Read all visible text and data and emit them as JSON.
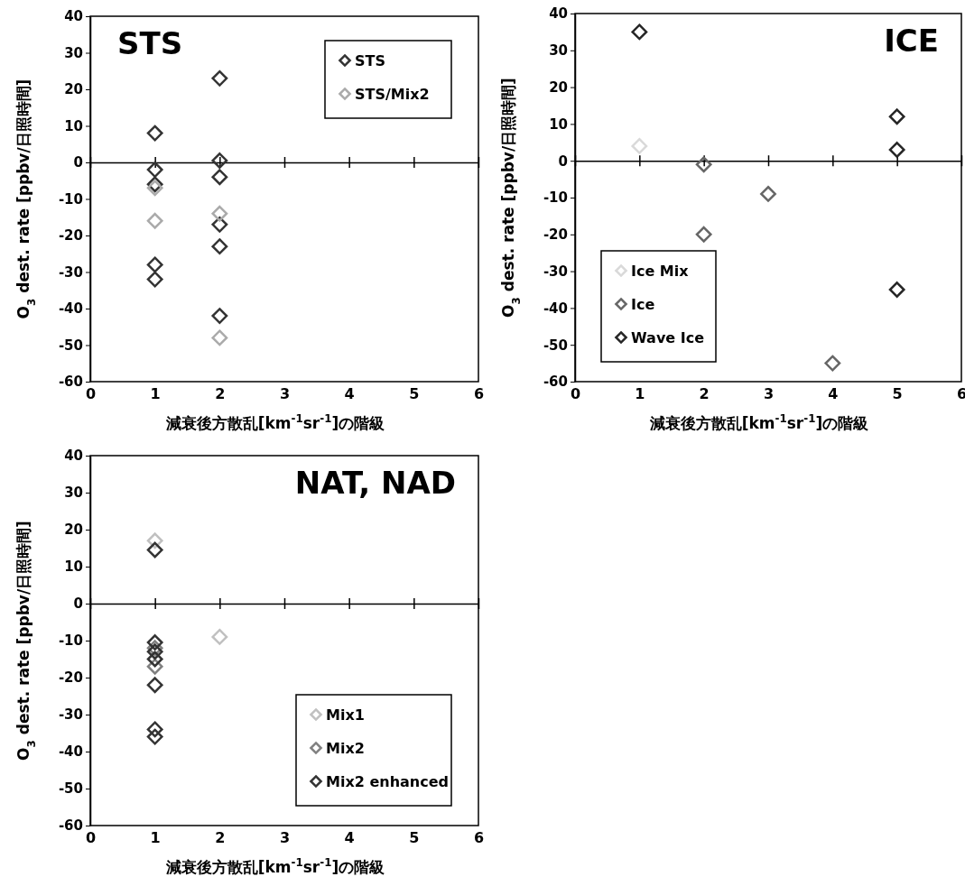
{
  "chart_data": [
    {
      "type": "scatter",
      "title": "STS",
      "xlabel": "減衰後方散乱[km$^{-1}$sr$^{-1}$]の階級",
      "ylabel": "O$_{3}$ dest. rate [ppbv/日照時間]",
      "xlim": [
        0,
        6
      ],
      "xticks": [
        0,
        1,
        2,
        3,
        4,
        5,
        6
      ],
      "ylim": [
        -60,
        40
      ],
      "yticks": [
        -60,
        -50,
        -40,
        -30,
        -20,
        -10,
        0,
        10,
        20,
        30,
        40
      ],
      "marker": "diamond",
      "legend": "top right",
      "series": [
        {
          "name": "STS",
          "color": "#333333",
          "x": [
            1,
            1,
            1,
            1,
            1,
            2,
            2,
            2,
            2,
            2,
            2
          ],
          "values": [
            8,
            -2,
            -6,
            -28,
            -32,
            23,
            0.5,
            -4,
            -17,
            -23,
            -42
          ]
        },
        {
          "name": "STS/Mix2",
          "color": "#aaaaaa",
          "x": [
            1,
            1,
            2,
            2
          ],
          "values": [
            -7,
            -16,
            -14,
            -48
          ]
        }
      ]
    },
    {
      "type": "scatter",
      "title": "ICE",
      "xlabel": "減衰後方散乱[km$^{-1}$sr$^{-1}$]の階級",
      "ylabel": "O$_{3}$ dest. rate [ppbv/日照時間]",
      "xlim": [
        0,
        6
      ],
      "xticks": [
        0,
        1,
        2,
        3,
        4,
        5,
        6
      ],
      "ylim": [
        -60,
        40
      ],
      "yticks": [
        -60,
        -50,
        -40,
        -30,
        -20,
        -10,
        0,
        10,
        20,
        30,
        40
      ],
      "marker": "diamond",
      "legend": "bottom left",
      "series": [
        {
          "name": "Ice Mix",
          "color": "#d9d9d9",
          "x": [
            1
          ],
          "values": [
            4
          ]
        },
        {
          "name": "Ice",
          "color": "#666666",
          "x": [
            2,
            3,
            2,
            4
          ],
          "values": [
            -1,
            -9,
            -20,
            -55
          ]
        },
        {
          "name": "Wave Ice",
          "color": "#262626",
          "x": [
            1,
            5,
            5,
            5
          ],
          "values": [
            35,
            12,
            3,
            -35
          ]
        }
      ]
    },
    {
      "type": "scatter",
      "title": "NAT, NAD",
      "xlabel": "減衰後方散乱[km$^{-1}$sr$^{-1}$]の階級",
      "ylabel": "O$_{3}$ dest. rate [ppbv/日照時間]",
      "xlim": [
        0,
        6
      ],
      "xticks": [
        0,
        1,
        2,
        3,
        4,
        5,
        6
      ],
      "ylim": [
        -60,
        40
      ],
      "yticks": [
        -60,
        -50,
        -40,
        -30,
        -20,
        -10,
        0,
        10,
        20,
        30,
        40
      ],
      "marker": "diamond",
      "legend": "bottom right",
      "series": [
        {
          "name": "Mix1",
          "color": "#c0c0c0",
          "x": [
            1,
            2
          ],
          "values": [
            17,
            -9
          ]
        },
        {
          "name": "Mix2",
          "color": "#808080",
          "x": [
            1,
            1
          ],
          "values": [
            -12,
            -17
          ]
        },
        {
          "name": "Mix2 enhanced",
          "color": "#333333",
          "x": [
            1,
            1,
            1,
            1,
            1,
            1,
            1
          ],
          "values": [
            14.5,
            -10.5,
            -13,
            -15,
            -22,
            -34,
            -36
          ]
        }
      ]
    }
  ]
}
